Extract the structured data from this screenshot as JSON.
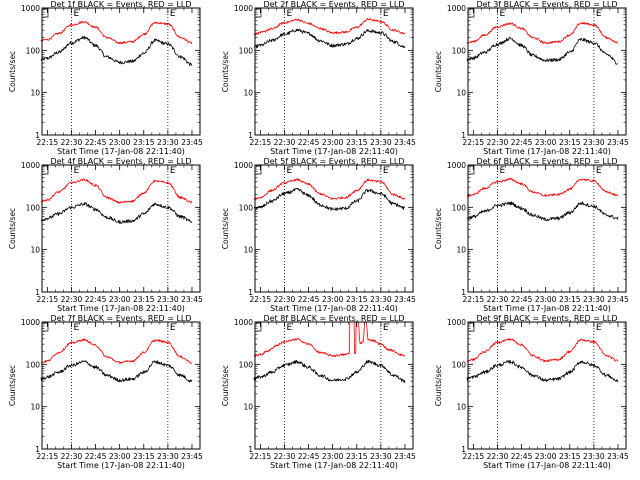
{
  "chart_data": [
    {
      "type": "line",
      "title": "Det 1f BLACK = Events, RED = LLD",
      "xlabel": "Start Time (17-Jan-08 22:11:40)",
      "ylabel": "Counts/sec",
      "yscale": "log",
      "ylim": [
        1,
        1000
      ],
      "x_ticks": [
        "22:15",
        "22:30",
        "22:45",
        "23:00",
        "23:15",
        "23:30",
        "23:45"
      ],
      "y_ticks": [
        "1",
        "10",
        "100",
        "1000"
      ],
      "markers": [
        {
          "label": "E",
          "time": "22:30"
        },
        {
          "label": "E",
          "time": "23:30"
        }
      ],
      "series": [
        {
          "name": "BLACK = Events",
          "color": "#000000",
          "x": [
            "22:11",
            "22:15",
            "22:22",
            "22:30",
            "22:38",
            "22:45",
            "22:52",
            "23:00",
            "23:08",
            "23:15",
            "23:22",
            "23:30",
            "23:38",
            "23:45"
          ],
          "values": [
            60,
            65,
            90,
            150,
            200,
            130,
            70,
            52,
            55,
            85,
            170,
            140,
            70,
            45
          ]
        },
        {
          "name": "RED = LLD",
          "color": "#ff0000",
          "x": [
            "22:11",
            "22:15",
            "22:22",
            "22:30",
            "22:38",
            "22:45",
            "22:52",
            "23:00",
            "23:08",
            "23:15",
            "23:22",
            "23:30",
            "23:38",
            "23:45"
          ],
          "values": [
            170,
            180,
            250,
            400,
            470,
            350,
            200,
            150,
            160,
            240,
            450,
            420,
            200,
            150
          ]
        }
      ]
    },
    {
      "type": "line",
      "title": "Det 2f BLACK = Events, RED = LLD",
      "xlabel": "Start Time (17-Jan-08 22:11:40)",
      "ylabel": "Counts/sec",
      "yscale": "log",
      "ylim": [
        1,
        1000
      ],
      "x_ticks": [
        "22:15",
        "22:30",
        "22:45",
        "23:00",
        "23:15",
        "23:30",
        "23:45"
      ],
      "y_ticks": [
        "1",
        "10",
        "100",
        "1000"
      ],
      "markers": [
        {
          "label": "E",
          "time": "22:30"
        },
        {
          "label": "E",
          "time": "23:30"
        }
      ],
      "series": [
        {
          "name": "BLACK = Events",
          "color": "#000000",
          "x": [
            "22:11",
            "22:15",
            "22:22",
            "22:30",
            "22:38",
            "22:45",
            "22:52",
            "23:00",
            "23:08",
            "23:15",
            "23:22",
            "23:30",
            "23:38",
            "23:45"
          ],
          "values": [
            120,
            130,
            170,
            240,
            300,
            250,
            170,
            130,
            140,
            190,
            290,
            260,
            160,
            120
          ]
        },
        {
          "name": "RED = LLD",
          "color": "#ff0000",
          "x": [
            "22:11",
            "22:15",
            "22:22",
            "22:30",
            "22:38",
            "22:45",
            "22:52",
            "23:00",
            "23:08",
            "23:15",
            "23:22",
            "23:30",
            "23:38",
            "23:45"
          ],
          "values": [
            240,
            260,
            320,
            450,
            530,
            430,
            330,
            260,
            270,
            350,
            540,
            480,
            300,
            250
          ]
        }
      ]
    },
    {
      "type": "line",
      "title": "Det 3f BLACK = Events, RED = LLD",
      "xlabel": "Start Time (17-Jan-08 22:11:40)",
      "ylabel": "Counts/sec",
      "yscale": "log",
      "ylim": [
        1,
        1000
      ],
      "x_ticks": [
        "22:15",
        "22:30",
        "22:45",
        "23:00",
        "23:15",
        "23:30",
        "23:45"
      ],
      "y_ticks": [
        "1",
        "10",
        "100",
        "1000"
      ],
      "markers": [
        {
          "label": "E",
          "time": "22:30"
        },
        {
          "label": "E",
          "time": "23:30"
        }
      ],
      "series": [
        {
          "name": "BLACK = Events",
          "color": "#000000",
          "x": [
            "22:11",
            "22:15",
            "22:22",
            "22:30",
            "22:38",
            "22:45",
            "22:52",
            "23:00",
            "23:08",
            "23:15",
            "23:22",
            "23:30",
            "23:38",
            "23:45"
          ],
          "values": [
            60,
            66,
            90,
            140,
            190,
            130,
            75,
            58,
            60,
            90,
            180,
            150,
            80,
            50
          ]
        },
        {
          "name": "RED = LLD",
          "color": "#ff0000",
          "x": [
            "22:11",
            "22:15",
            "22:22",
            "22:30",
            "22:38",
            "22:45",
            "22:52",
            "23:00",
            "23:08",
            "23:15",
            "23:22",
            "23:30",
            "23:38",
            "23:45"
          ],
          "values": [
            150,
            160,
            230,
            360,
            430,
            330,
            200,
            150,
            160,
            230,
            440,
            400,
            200,
            150
          ]
        }
      ]
    },
    {
      "type": "line",
      "title": "Det 4f BLACK = Events, RED = LLD",
      "xlabel": "Start Time (17-Jan-08 22:11:40)",
      "ylabel": "Counts/sec",
      "yscale": "log",
      "ylim": [
        1,
        1000
      ],
      "x_ticks": [
        "22:15",
        "22:30",
        "22:45",
        "23:00",
        "23:15",
        "23:30",
        "23:45"
      ],
      "y_ticks": [
        "1",
        "10",
        "100",
        "1000"
      ],
      "markers": [
        {
          "label": "E",
          "time": "22:30"
        },
        {
          "label": "E",
          "time": "23:30"
        }
      ],
      "series": [
        {
          "name": "BLACK = Events",
          "color": "#000000",
          "x": [
            "22:11",
            "22:15",
            "22:22",
            "22:30",
            "22:38",
            "22:45",
            "22:52",
            "23:00",
            "23:08",
            "23:15",
            "23:22",
            "23:30",
            "23:38",
            "23:45"
          ],
          "values": [
            50,
            55,
            70,
            100,
            120,
            90,
            58,
            45,
            48,
            70,
            120,
            100,
            60,
            45
          ]
        },
        {
          "name": "RED = LLD",
          "color": "#ff0000",
          "x": [
            "22:11",
            "22:15",
            "22:22",
            "22:30",
            "22:38",
            "22:45",
            "22:52",
            "23:00",
            "23:08",
            "23:15",
            "23:22",
            "23:30",
            "23:38",
            "23:45"
          ],
          "values": [
            140,
            150,
            230,
            380,
            450,
            330,
            170,
            130,
            140,
            220,
            420,
            380,
            170,
            130
          ]
        }
      ]
    },
    {
      "type": "line",
      "title": "Det 5f BLACK = Events, RED = LLD",
      "xlabel": "Start Time (17-Jan-08 22:11:40)",
      "ylabel": "Counts/sec",
      "yscale": "log",
      "ylim": [
        1,
        1000
      ],
      "x_ticks": [
        "22:15",
        "22:30",
        "22:45",
        "23:00",
        "23:15",
        "23:30",
        "23:45"
      ],
      "y_ticks": [
        "1",
        "10",
        "100",
        "1000"
      ],
      "markers": [
        {
          "label": "E",
          "time": "22:30"
        },
        {
          "label": "E",
          "time": "23:30"
        }
      ],
      "series": [
        {
          "name": "BLACK = Events",
          "color": "#000000",
          "x": [
            "22:11",
            "22:15",
            "22:22",
            "22:30",
            "22:38",
            "22:45",
            "22:52",
            "23:00",
            "23:08",
            "23:15",
            "23:22",
            "23:30",
            "23:38",
            "23:45"
          ],
          "values": [
            95,
            100,
            140,
            210,
            260,
            190,
            115,
            90,
            95,
            140,
            250,
            210,
            120,
            95
          ]
        },
        {
          "name": "RED = LLD",
          "color": "#ff0000",
          "x": [
            "22:11",
            "22:15",
            "22:22",
            "22:30",
            "22:38",
            "22:45",
            "22:52",
            "23:00",
            "23:08",
            "23:15",
            "23:22",
            "23:30",
            "23:38",
            "23:45"
          ],
          "values": [
            160,
            170,
            250,
            380,
            450,
            350,
            210,
            160,
            170,
            250,
            440,
            400,
            200,
            160
          ]
        }
      ]
    },
    {
      "type": "line",
      "title": "Det 6f BLACK = Events, RED = LLD",
      "xlabel": "Start Time (17-Jan-08 22:11:40)",
      "ylabel": "Counts/sec",
      "yscale": "log",
      "ylim": [
        1,
        1000
      ],
      "x_ticks": [
        "22:15",
        "22:30",
        "22:45",
        "23:00",
        "23:15",
        "23:30",
        "23:45"
      ],
      "y_ticks": [
        "1",
        "10",
        "100",
        "1000"
      ],
      "markers": [
        {
          "label": "E",
          "time": "22:30"
        },
        {
          "label": "E",
          "time": "23:30"
        }
      ],
      "series": [
        {
          "name": "BLACK = Events",
          "color": "#000000",
          "x": [
            "22:11",
            "22:15",
            "22:22",
            "22:30",
            "22:38",
            "22:45",
            "22:52",
            "23:00",
            "23:08",
            "23:15",
            "23:22",
            "23:30",
            "23:38",
            "23:45"
          ],
          "values": [
            55,
            60,
            80,
            110,
            125,
            95,
            65,
            52,
            55,
            75,
            125,
            105,
            65,
            55
          ]
        },
        {
          "name": "RED = LLD",
          "color": "#ff0000",
          "x": [
            "22:11",
            "22:15",
            "22:22",
            "22:30",
            "22:38",
            "22:45",
            "22:52",
            "23:00",
            "23:08",
            "23:15",
            "23:22",
            "23:30",
            "23:38",
            "23:45"
          ],
          "values": [
            180,
            200,
            280,
            400,
            460,
            360,
            230,
            190,
            200,
            270,
            460,
            420,
            230,
            190
          ]
        }
      ]
    },
    {
      "type": "line",
      "title": "Det 7f BLACK = Events, RED = LLD",
      "xlabel": "Start Time (17-Jan-08 22:11:40)",
      "ylabel": "Counts/sec",
      "yscale": "log",
      "ylim": [
        1,
        1000
      ],
      "x_ticks": [
        "22:15",
        "22:30",
        "22:45",
        "23:00",
        "23:15",
        "23:30",
        "23:45"
      ],
      "y_ticks": [
        "1",
        "10",
        "100",
        "1000"
      ],
      "markers": [
        {
          "label": "E",
          "time": "22:30"
        },
        {
          "label": "E",
          "time": "23:30"
        }
      ],
      "series": [
        {
          "name": "BLACK = Events",
          "color": "#000000",
          "x": [
            "22:11",
            "22:15",
            "22:22",
            "22:30",
            "22:38",
            "22:45",
            "22:52",
            "23:00",
            "23:08",
            "23:15",
            "23:22",
            "23:30",
            "23:38",
            "23:45"
          ],
          "values": [
            45,
            50,
            65,
            95,
            115,
            85,
            55,
            42,
            45,
            65,
            115,
            95,
            55,
            40
          ]
        },
        {
          "name": "RED = LLD",
          "color": "#ff0000",
          "x": [
            "22:11",
            "22:15",
            "22:22",
            "22:30",
            "22:38",
            "22:45",
            "22:52",
            "23:00",
            "23:08",
            "23:15",
            "23:22",
            "23:30",
            "23:38",
            "23:45"
          ],
          "values": [
            110,
            120,
            190,
            320,
            380,
            280,
            150,
            110,
            120,
            190,
            370,
            330,
            150,
            110
          ]
        }
      ]
    },
    {
      "type": "line",
      "title": "Det 8f BLACK = Events, RED = LLD",
      "xlabel": "Start Time (17-Jan-08 22:11:40)",
      "ylabel": "Counts/sec",
      "yscale": "log",
      "ylim": [
        1,
        1000
      ],
      "x_ticks": [
        "22:15",
        "22:30",
        "22:45",
        "23:00",
        "23:15",
        "23:30",
        "23:45"
      ],
      "y_ticks": [
        "1",
        "10",
        "100",
        "1000"
      ],
      "markers": [
        {
          "label": "E",
          "time": "22:30"
        },
        {
          "label": "E",
          "time": "23:30"
        }
      ],
      "series": [
        {
          "name": "BLACK = Events",
          "color": "#000000",
          "x": [
            "22:11",
            "22:15",
            "22:22",
            "22:30",
            "22:38",
            "22:45",
            "22:52",
            "23:00",
            "23:08",
            "23:15",
            "23:22",
            "23:30",
            "23:38",
            "23:45"
          ],
          "values": [
            45,
            50,
            65,
            95,
            115,
            85,
            55,
            42,
            45,
            65,
            115,
            95,
            55,
            40
          ]
        },
        {
          "name": "RED = LLD",
          "color": "#ff0000",
          "x": [
            "22:11",
            "22:15",
            "22:20",
            "22:25",
            "22:30",
            "22:38",
            "22:45",
            "22:52",
            "23:00",
            "23:08",
            "23:10",
            "23:11",
            "23:13",
            "23:14",
            "23:15",
            "23:16",
            "23:17",
            "23:18",
            "23:19",
            "23:20",
            "23:21",
            "23:22",
            "23:25",
            "23:30",
            "23:35",
            "23:45"
          ],
          "values": [
            160,
            170,
            210,
            280,
            340,
            390,
            300,
            190,
            160,
            170,
            180,
            1000,
            1000,
            180,
            1000,
            1000,
            320,
            320,
            340,
            1000,
            1000,
            380,
            370,
            300,
            220,
            160
          ]
        }
      ]
    },
    {
      "type": "line",
      "title": "Det 9f BLACK = Events, RED = LLD",
      "xlabel": "Start Time (17-Jan-08 22:11:40)",
      "ylabel": "Counts/sec",
      "yscale": "log",
      "ylim": [
        1,
        1000
      ],
      "x_ticks": [
        "22:15",
        "22:30",
        "22:45",
        "23:00",
        "23:15",
        "23:30",
        "23:45"
      ],
      "y_ticks": [
        "1",
        "10",
        "100",
        "1000"
      ],
      "markers": [
        {
          "label": "E",
          "time": "22:30"
        },
        {
          "label": "E",
          "time": "23:30"
        }
      ],
      "series": [
        {
          "name": "BLACK = Events",
          "color": "#000000",
          "x": [
            "22:11",
            "22:15",
            "22:22",
            "22:30",
            "22:38",
            "22:45",
            "22:52",
            "23:00",
            "23:08",
            "23:15",
            "23:22",
            "23:30",
            "23:38",
            "23:45"
          ],
          "values": [
            45,
            50,
            65,
            95,
            115,
            85,
            55,
            42,
            45,
            65,
            115,
            95,
            55,
            40
          ]
        },
        {
          "name": "RED = LLD",
          "color": "#ff0000",
          "x": [
            "22:11",
            "22:15",
            "22:22",
            "22:30",
            "22:38",
            "22:45",
            "22:52",
            "23:00",
            "23:08",
            "23:15",
            "23:22",
            "23:30",
            "23:38",
            "23:45"
          ],
          "values": [
            120,
            130,
            200,
            330,
            390,
            290,
            160,
            120,
            130,
            200,
            380,
            340,
            160,
            120
          ]
        }
      ]
    }
  ]
}
